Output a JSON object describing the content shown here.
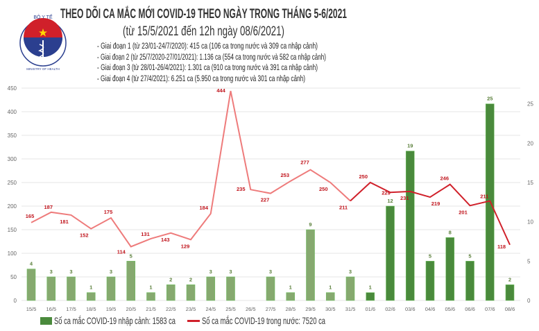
{
  "logo": {
    "text_top": "BỘ Y TẾ",
    "text_bottom": "MINISTRY OF HEALTH"
  },
  "title": "THEO DÕI CA MẮC MỚI COVID-19 THEO NGÀY TRONG THÁNG 5-6/2021",
  "subtitle": "(từ 15/5/2021 đến 12h ngày 08/6/2021)",
  "notes": [
    "- Giai đoạn 1 (từ 23/01-24/7/2020): 415 ca (106 ca trong nước và 309 ca nhập cảnh)",
    "- Giai đoạn 2 (từ 25/7/2020-27/01/2021): 1.136 ca (554 ca trong nước và 582 ca nhập cảnh)",
    "- Giai đoạn 3 (từ 28/01-26/4/2021): 1.301 ca (910 ca trong nước và 391 ca nhập cảnh)",
    "- Giai đoạn 4 (từ 27/4/2021): 6.251 ca (5.950 ca trong nước và 301 ca nhập cảnh)"
  ],
  "colors": {
    "bar_old": "#86a96f",
    "bar_new": "#4a8a3c",
    "line_old": "#ee7b7b",
    "line_new": "#d0202a",
    "label_bar": "#5a7f3a",
    "label_line": "#c0141c",
    "grid": "#e6e6e6"
  },
  "chart_data": {
    "type": "bar+line",
    "categories": [
      "15/5",
      "16/5",
      "17/5",
      "18/5",
      "19/5",
      "20/5",
      "21/5",
      "22/5",
      "23/5",
      "24/5",
      "25/5",
      "26/5",
      "27/5",
      "28/5",
      "29/5",
      "30/5",
      "31/5",
      "01/6",
      "02/6",
      "03/6",
      "04/6",
      "05/6",
      "06/6",
      "07/6",
      "08/6"
    ],
    "series": [
      {
        "name": "Số ca mắc COVID-19 nhập cảnh: 1583 ca",
        "type": "bar",
        "axis": "right",
        "values": [
          4,
          3,
          3,
          1,
          3,
          5,
          1,
          2,
          2,
          3,
          3,
          0,
          3,
          1,
          9,
          1,
          3,
          1,
          12,
          19,
          5,
          8,
          5,
          25,
          2
        ]
      },
      {
        "name": "Số ca mắc COVID-19 trong nước: 7520 ca",
        "type": "line",
        "axis": "left",
        "values": [
          165,
          187,
          181,
          152,
          175,
          114,
          131,
          143,
          129,
          184,
          444,
          235,
          227,
          253,
          277,
          250,
          211,
          250,
          229,
          231,
          219,
          246,
          201,
          211,
          118
        ]
      }
    ],
    "left_axis": {
      "range": [
        0,
        450
      ],
      "ticks": [
        0,
        50,
        100,
        150,
        200,
        250,
        300,
        350,
        400,
        450
      ]
    },
    "right_axis": {
      "range": [
        0,
        27
      ],
      "ticks": [
        0,
        5,
        10,
        15,
        20,
        25
      ]
    },
    "grid": true,
    "legend": "bottom"
  }
}
